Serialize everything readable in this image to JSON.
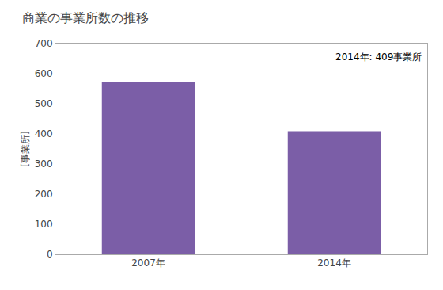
{
  "chart_data": {
    "type": "bar",
    "title": "商業の事業所数の推移",
    "ylabel": "[事業所]",
    "categories": [
      "2007年",
      "2014年"
    ],
    "values": [
      572,
      409
    ],
    "color": "#7B5EA7",
    "ylim": [
      0,
      700
    ],
    "yticks": [
      0,
      100,
      200,
      300,
      400,
      500,
      600,
      700
    ],
    "annotation": "2014年: 409事業所",
    "grid": false
  }
}
